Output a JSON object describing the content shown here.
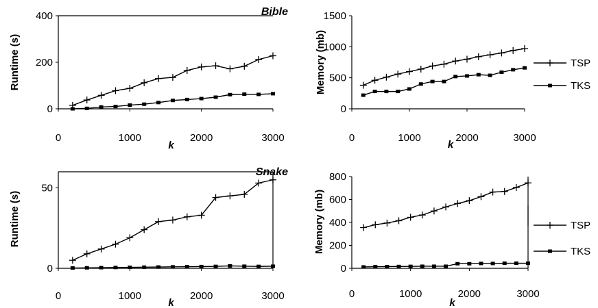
{
  "chart_data": [
    {
      "type": "line",
      "title": "Bible",
      "xlabel": "k",
      "ylabel": "Runtime (s)",
      "xlim": [
        0,
        3000
      ],
      "ylim": [
        0,
        400
      ],
      "xticks": [
        "0",
        "1000",
        "2000",
        "3000"
      ],
      "yticks": [
        "0",
        "200",
        "400"
      ],
      "grid": false,
      "legend": "none",
      "x": [
        200,
        400,
        600,
        800,
        1000,
        1200,
        1400,
        1600,
        1800,
        2000,
        2200,
        2400,
        2600,
        2800,
        3000
      ],
      "series": [
        {
          "name": "TSP",
          "values": [
            15,
            38,
            58,
            78,
            88,
            112,
            130,
            135,
            165,
            180,
            185,
            172,
            183,
            212,
            228
          ]
        },
        {
          "name": "TKS",
          "values": [
            0,
            2,
            8,
            10,
            16,
            20,
            27,
            36,
            40,
            44,
            50,
            61,
            63,
            62,
            65
          ]
        }
      ]
    },
    {
      "type": "line",
      "title": "",
      "xlabel": "k",
      "ylabel": "Memory (mb)",
      "xlim": [
        0,
        3000
      ],
      "ylim": [
        0,
        1500
      ],
      "xticks": [
        "0",
        "1000",
        "2000",
        "3000"
      ],
      "yticks": [
        "0",
        "500",
        "1000",
        "1500"
      ],
      "grid": false,
      "legend": "right",
      "x": [
        200,
        400,
        600,
        800,
        1000,
        1200,
        1400,
        1600,
        1800,
        2000,
        2200,
        2400,
        2600,
        2800,
        3000
      ],
      "series": [
        {
          "name": "TSP",
          "values": [
            380,
            460,
            510,
            560,
            600,
            640,
            690,
            720,
            770,
            800,
            840,
            870,
            900,
            940,
            970
          ]
        },
        {
          "name": "TKS",
          "values": [
            220,
            280,
            280,
            280,
            320,
            400,
            440,
            440,
            520,
            530,
            550,
            540,
            590,
            630,
            660
          ]
        }
      ]
    },
    {
      "type": "line",
      "title": "Snake",
      "xlabel": "k",
      "ylabel": "Runtime (s)",
      "xlim": [
        0,
        3000
      ],
      "ylim": [
        0,
        60
      ],
      "xticks": [
        "0",
        "1000",
        "2000",
        "3000"
      ],
      "yticks": [
        "0",
        "50"
      ],
      "grid": false,
      "legend": "none",
      "x": [
        200,
        400,
        600,
        800,
        1000,
        1200,
        1400,
        1600,
        1800,
        2000,
        2200,
        2400,
        2600,
        2800,
        3000
      ],
      "series": [
        {
          "name": "TSP",
          "values": [
            5,
            9,
            12,
            15,
            19,
            24,
            29,
            30,
            32,
            33,
            44,
            45,
            46,
            53,
            55
          ]
        },
        {
          "name": "TKS",
          "values": [
            0.2,
            0.3,
            0.4,
            0.5,
            0.6,
            0.7,
            0.8,
            0.9,
            1.0,
            1.1,
            1.2,
            1.5,
            1.3,
            1.2,
            1.3
          ]
        }
      ]
    },
    {
      "type": "line",
      "title": "",
      "xlabel": "k",
      "ylabel": "Memory (mb)",
      "xlim": [
        0,
        3000
      ],
      "ylim": [
        0,
        800
      ],
      "xticks": [
        "0",
        "1000",
        "2000",
        "3000"
      ],
      "yticks": [
        "0",
        "200",
        "400",
        "600",
        "800"
      ],
      "grid": false,
      "legend": "right",
      "x": [
        200,
        400,
        600,
        800,
        1000,
        1200,
        1400,
        1600,
        1800,
        2000,
        2200,
        2400,
        2600,
        2800,
        3000
      ],
      "series": [
        {
          "name": "TSP",
          "values": [
            355,
            380,
            395,
            415,
            445,
            465,
            500,
            535,
            565,
            590,
            625,
            665,
            670,
            705,
            745
          ]
        },
        {
          "name": "TKS",
          "values": [
            12,
            14,
            15,
            16,
            17,
            18,
            18,
            18,
            40,
            40,
            42,
            42,
            44,
            44,
            44
          ]
        }
      ]
    }
  ]
}
